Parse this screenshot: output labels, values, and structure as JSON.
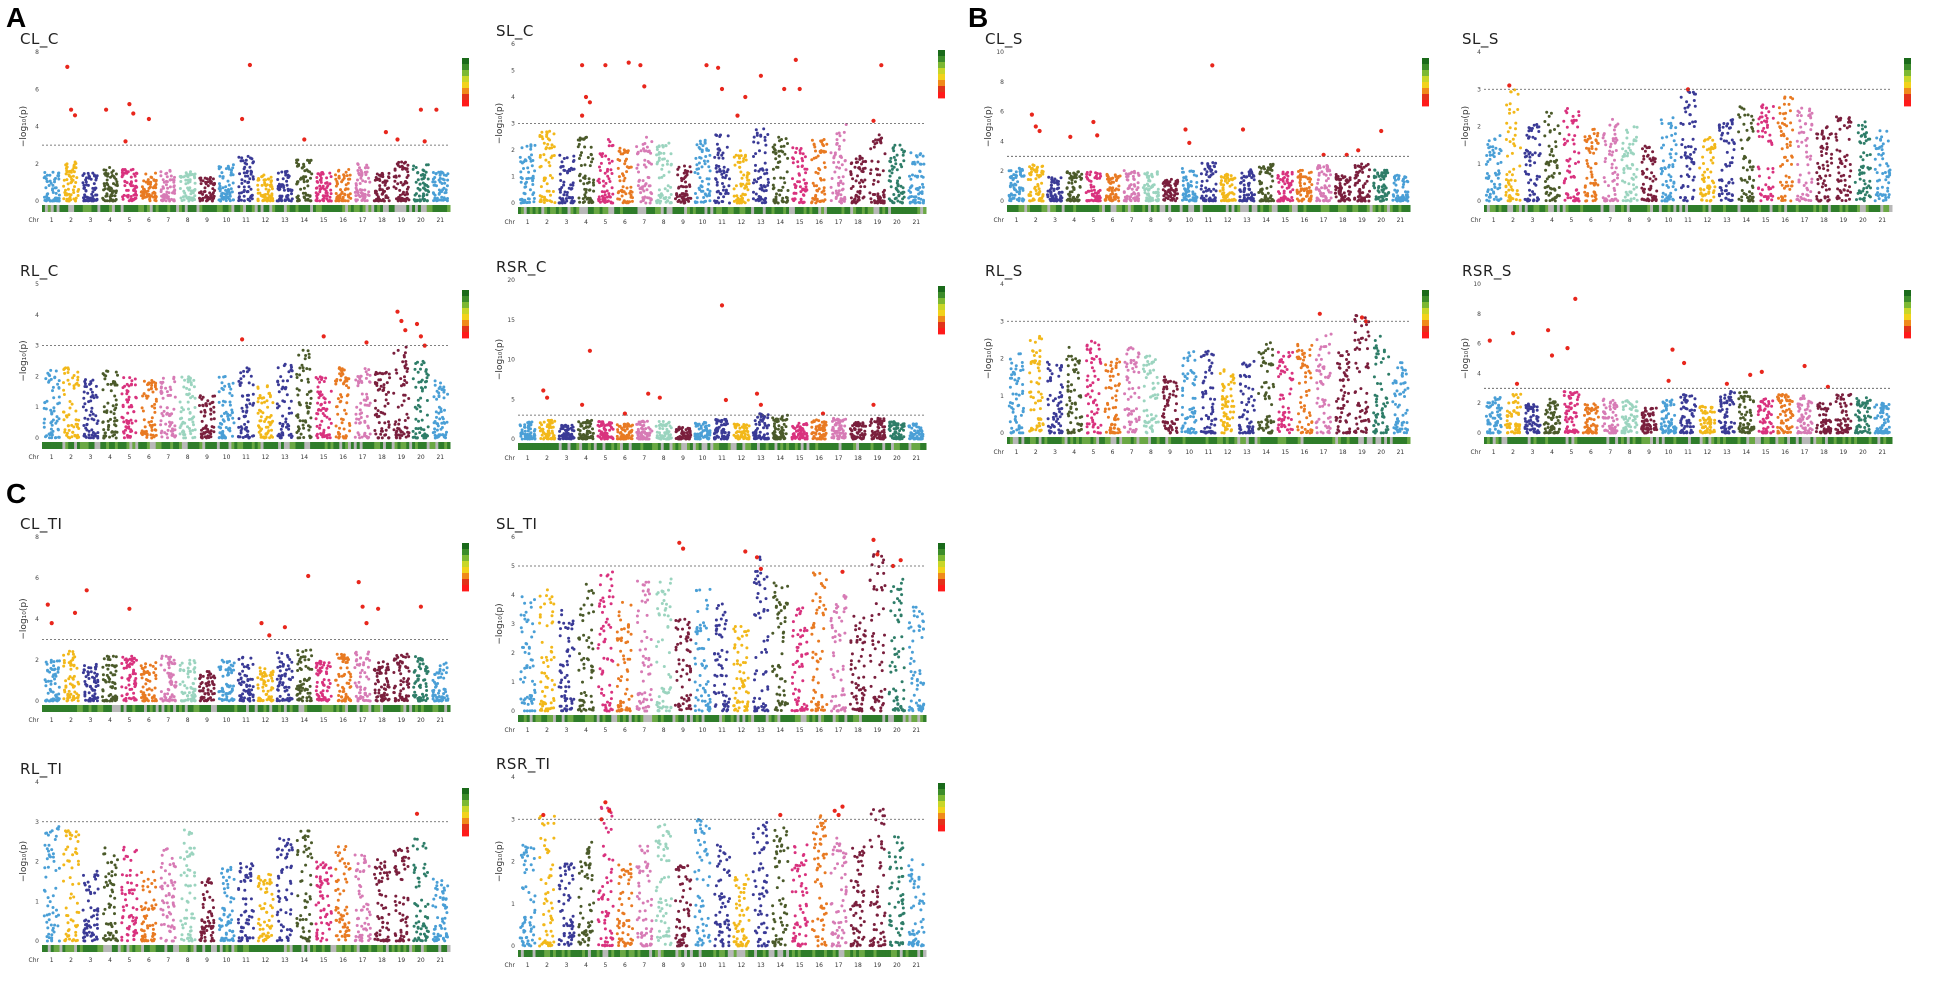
{
  "figure": {
    "panel_labels": [
      "A",
      "B",
      "C"
    ]
  },
  "common": {
    "ylabel": "−log₁₀(p)",
    "chr_prefix": "Chr",
    "chromosomes": [
      "1",
      "2",
      "3",
      "4",
      "5",
      "6",
      "7",
      "8",
      "9",
      "10",
      "11",
      "12",
      "13",
      "14",
      "15",
      "16",
      "17",
      "18",
      "19",
      "20",
      "21"
    ],
    "chrom_colors": [
      "#4a9fd6",
      "#f2b81a",
      "#3a3a96",
      "#4b5a2a",
      "#d9327e",
      "#e87a22",
      "#d77bb5",
      "#9bd4bf",
      "#7a1f3d",
      "#4a9fd6",
      "#3a3a96",
      "#f2b81a",
      "#3a3a96",
      "#4b5a2a",
      "#d9327e",
      "#e87a22",
      "#d77bb5",
      "#7a1f3d",
      "#7a1f3d",
      "#2e7d68",
      "#4a9fd6"
    ],
    "density_legend_colors": [
      "#1a6a1a",
      "#3c8c2a",
      "#7cb832",
      "#c8d628",
      "#f2d21a",
      "#f08a1a",
      "#e2331a",
      "#ff1a1a"
    ]
  },
  "chart_data": [
    {
      "id": "CL_C",
      "title": "CL_C",
      "type": "scatter",
      "subtype": "manhattan",
      "ylim": [
        0,
        8
      ],
      "yticks": [
        0,
        2,
        4,
        6,
        8
      ],
      "threshold": 3,
      "base_height": [
        1.6,
        2.1,
        1.5,
        1.8,
        1.7,
        1.5,
        1.8,
        1.6,
        1.3,
        2.0,
        2.4,
        1.5,
        1.6,
        2.2,
        1.6,
        1.7,
        2.0,
        1.5,
        2.1,
        2.0,
        1.6
      ],
      "significant": [
        [
          2,
          7.2
        ],
        [
          2,
          4.9
        ],
        [
          2,
          4.6
        ],
        [
          4,
          4.9
        ],
        [
          5,
          5.2
        ],
        [
          5,
          4.7
        ],
        [
          5,
          3.2
        ],
        [
          6,
          4.4
        ],
        [
          11,
          7.3
        ],
        [
          11,
          4.4
        ],
        [
          14,
          3.3
        ],
        [
          18,
          3.7
        ],
        [
          19,
          3.3
        ],
        [
          20,
          4.9
        ],
        [
          20,
          3.2
        ],
        [
          21,
          4.9
        ]
      ]
    },
    {
      "id": "SL_C",
      "title": "SL_C",
      "type": "scatter",
      "subtype": "manhattan",
      "ylim": [
        0,
        6
      ],
      "yticks": [
        0,
        1,
        2,
        3,
        4,
        5,
        6
      ],
      "threshold": 3,
      "base_height": [
        2.2,
        2.8,
        1.8,
        2.5,
        2.4,
        2.2,
        2.5,
        2.3,
        1.5,
        2.4,
        2.6,
        2.0,
        2.8,
        2.5,
        2.1,
        2.4,
        3.0,
        1.8,
        2.6,
        2.3,
        1.9
      ],
      "significant": [
        [
          4,
          5.2
        ],
        [
          4,
          4.0
        ],
        [
          4,
          3.8
        ],
        [
          4,
          3.3
        ],
        [
          5,
          5.2
        ],
        [
          6,
          5.3
        ],
        [
          7,
          5.2
        ],
        [
          7,
          4.4
        ],
        [
          10,
          5.2
        ],
        [
          11,
          5.1
        ],
        [
          11,
          4.3
        ],
        [
          12,
          4.0
        ],
        [
          12,
          3.3
        ],
        [
          13,
          4.8
        ],
        [
          14,
          4.3
        ],
        [
          15,
          5.4
        ],
        [
          15,
          4.3
        ],
        [
          19,
          5.2
        ],
        [
          19,
          3.1
        ]
      ]
    },
    {
      "id": "RL_C",
      "title": "RL_C",
      "type": "scatter",
      "subtype": "manhattan",
      "ylim": [
        0,
        5
      ],
      "yticks": [
        0,
        1,
        2,
        3,
        4,
        5
      ],
      "threshold": 3,
      "base_height": [
        2.2,
        2.3,
        1.9,
        2.2,
        2.1,
        1.9,
        2.0,
        2.0,
        1.4,
        2.0,
        2.3,
        1.7,
        2.4,
        2.9,
        2.0,
        2.3,
        2.4,
        2.2,
        3.0,
        2.5,
        1.9
      ],
      "significant": [
        [
          11,
          3.2
        ],
        [
          15,
          3.3
        ],
        [
          17,
          3.1
        ],
        [
          19,
          4.1
        ],
        [
          19,
          3.8
        ],
        [
          19,
          3.5
        ],
        [
          20,
          3.7
        ],
        [
          20,
          3.3
        ],
        [
          20,
          3.0
        ]
      ]
    },
    {
      "id": "RSR_C",
      "title": "RSR_C",
      "type": "scatter",
      "subtype": "manhattan",
      "ylim": [
        0,
        20
      ],
      "yticks": [
        0,
        5,
        10,
        15,
        20
      ],
      "threshold": 3,
      "base_height": [
        2.2,
        2.4,
        1.8,
        2.4,
        2.2,
        2.0,
        2.3,
        2.2,
        1.5,
        2.1,
        2.5,
        1.9,
        3.2,
        3.0,
        2.0,
        2.4,
        2.6,
        2.1,
        2.6,
        2.2,
        1.9
      ],
      "significant": [
        [
          2,
          6.1
        ],
        [
          2,
          5.2
        ],
        [
          4,
          11.1
        ],
        [
          4,
          4.3
        ],
        [
          6,
          3.2
        ],
        [
          7,
          5.7
        ],
        [
          8,
          5.2
        ],
        [
          11,
          16.8
        ],
        [
          11,
          4.9
        ],
        [
          13,
          5.7
        ],
        [
          13,
          4.3
        ],
        [
          16,
          3.2
        ],
        [
          19,
          4.3
        ]
      ]
    },
    {
      "id": "CL_S",
      "title": "CL_S",
      "type": "scatter",
      "subtype": "manhattan",
      "ylim": [
        0,
        10
      ],
      "yticks": [
        0,
        2,
        4,
        6,
        8,
        10
      ],
      "threshold": 3,
      "base_height": [
        2.2,
        2.5,
        1.7,
        2.0,
        2.0,
        1.8,
        2.1,
        2.0,
        1.5,
        2.2,
        2.6,
        1.8,
        2.1,
        2.5,
        2.0,
        2.2,
        2.4,
        1.8,
        2.5,
        2.2,
        1.8
      ],
      "significant": [
        [
          2,
          5.8
        ],
        [
          2,
          5.0
        ],
        [
          2,
          4.7
        ],
        [
          4,
          4.3
        ],
        [
          5,
          5.3
        ],
        [
          5,
          4.4
        ],
        [
          10,
          4.8
        ],
        [
          10,
          3.9
        ],
        [
          11,
          9.1
        ],
        [
          13,
          4.8
        ],
        [
          17,
          3.1
        ],
        [
          18,
          3.1
        ],
        [
          19,
          3.4
        ],
        [
          20,
          4.7
        ]
      ]
    },
    {
      "id": "SL_S",
      "title": "SL_S",
      "type": "scatter",
      "subtype": "manhattan",
      "ylim": [
        0,
        4
      ],
      "yticks": [
        0,
        1,
        2,
        3,
        4
      ],
      "threshold": 3,
      "base_height": [
        1.8,
        3.1,
        2.2,
        2.4,
        2.5,
        2.0,
        2.2,
        2.0,
        1.5,
        2.3,
        3.0,
        1.8,
        2.2,
        2.6,
        2.6,
        2.8,
        2.5,
        2.0,
        2.3,
        2.2,
        1.9
      ],
      "significant": [
        [
          2,
          3.1
        ],
        [
          11,
          3.0
        ]
      ]
    },
    {
      "id": "RL_S",
      "title": "RL_S",
      "type": "scatter",
      "subtype": "manhattan",
      "ylim": [
        0,
        4
      ],
      "yticks": [
        0,
        1,
        2,
        3,
        4
      ],
      "threshold": 3,
      "base_height": [
        2.2,
        2.6,
        1.9,
        2.3,
        2.5,
        2.0,
        2.3,
        2.1,
        1.6,
        2.2,
        2.4,
        1.7,
        2.0,
        2.5,
        2.2,
        2.4,
        2.9,
        2.2,
        3.2,
        2.6,
        1.9
      ],
      "significant": [
        [
          17,
          3.2
        ],
        [
          19,
          3.1
        ],
        [
          19,
          3.0
        ]
      ]
    },
    {
      "id": "RSR_S",
      "title": "RSR_S",
      "type": "scatter",
      "subtype": "manhattan",
      "ylim": [
        0,
        10
      ],
      "yticks": [
        0,
        2,
        4,
        6,
        8,
        10
      ],
      "threshold": 3,
      "base_height": [
        2.4,
        2.6,
        2.0,
        2.3,
        2.8,
        2.0,
        2.3,
        2.2,
        1.7,
        2.3,
        2.6,
        1.9,
        2.8,
        2.8,
        2.3,
        2.6,
        2.6,
        2.2,
        2.6,
        2.4,
        2.0
      ],
      "significant": [
        [
          1,
          6.2
        ],
        [
          2,
          6.7
        ],
        [
          2,
          3.3
        ],
        [
          4,
          6.9
        ],
        [
          4,
          5.2
        ],
        [
          5,
          9.0
        ],
        [
          5,
          5.7
        ],
        [
          10,
          3.5
        ],
        [
          10,
          5.6
        ],
        [
          11,
          4.7
        ],
        [
          13,
          3.3
        ],
        [
          14,
          3.9
        ],
        [
          15,
          4.1
        ],
        [
          17,
          4.5
        ],
        [
          18,
          3.1
        ]
      ]
    },
    {
      "id": "CL_TI",
      "title": "CL_TI",
      "type": "scatter",
      "subtype": "manhattan",
      "ylim": [
        0,
        8
      ],
      "yticks": [
        0,
        2,
        4,
        6,
        8
      ],
      "threshold": 3,
      "base_height": [
        2.0,
        2.5,
        1.8,
        2.2,
        2.2,
        1.9,
        2.2,
        2.0,
        1.5,
        2.0,
        2.2,
        1.7,
        2.4,
        2.5,
        2.0,
        2.3,
        2.4,
        2.0,
        2.3,
        2.2,
        1.9
      ],
      "significant": [
        [
          1,
          4.7
        ],
        [
          1,
          3.8
        ],
        [
          2,
          4.3
        ],
        [
          3,
          5.4
        ],
        [
          5,
          4.5
        ],
        [
          12,
          3.2
        ],
        [
          12,
          3.8
        ],
        [
          13,
          3.6
        ],
        [
          14,
          6.1
        ],
        [
          17,
          5.8
        ],
        [
          17,
          4.6
        ],
        [
          17,
          3.8
        ],
        [
          18,
          4.5
        ],
        [
          20,
          4.6
        ]
      ]
    },
    {
      "id": "SL_TI",
      "title": "SL_TI",
      "type": "scatter",
      "subtype": "manhattan",
      "ylim": [
        0,
        6
      ],
      "yticks": [
        0,
        1,
        2,
        3,
        4,
        5,
        6
      ],
      "threshold": 5,
      "base_height": [
        4.0,
        4.2,
        3.6,
        4.4,
        4.8,
        3.8,
        4.5,
        4.6,
        3.2,
        4.2,
        3.7,
        3.0,
        5.4,
        4.5,
        3.6,
        4.8,
        4.0,
        3.3,
        5.5,
        4.8,
        3.6
      ],
      "significant": [
        [
          9,
          5.8
        ],
        [
          9,
          5.6
        ],
        [
          12,
          5.5
        ],
        [
          13,
          5.3
        ],
        [
          13,
          4.9
        ],
        [
          17,
          4.8
        ],
        [
          19,
          5.9
        ],
        [
          19,
          5.4
        ],
        [
          20,
          5.2
        ],
        [
          20,
          5.0
        ]
      ]
    },
    {
      "id": "RL_TI",
      "title": "RL_TI",
      "type": "scatter",
      "subtype": "manhattan",
      "ylim": [
        0,
        4
      ],
      "yticks": [
        0,
        1,
        2,
        3,
        4
      ],
      "threshold": 3,
      "base_height": [
        2.9,
        2.8,
        1.8,
        2.4,
        2.5,
        1.9,
        2.4,
        2.9,
        1.6,
        1.9,
        2.1,
        1.7,
        2.6,
        2.8,
        2.0,
        2.4,
        2.2,
        2.1,
        2.4,
        2.6,
        1.6
      ],
      "significant": [
        [
          20,
          3.2
        ]
      ]
    },
    {
      "id": "RSR_TI",
      "title": "RSR_TI",
      "type": "scatter",
      "subtype": "manhattan",
      "ylim": [
        0,
        4
      ],
      "yticks": [
        0,
        1,
        2,
        3,
        4
      ],
      "threshold": 3,
      "base_height": [
        2.4,
        3.1,
        2.0,
        2.5,
        3.4,
        2.0,
        2.4,
        2.9,
        1.9,
        3.0,
        2.4,
        1.7,
        3.0,
        2.8,
        2.4,
        3.1,
        2.6,
        2.4,
        3.3,
        2.6,
        2.1
      ],
      "significant": [
        [
          2,
          3.1
        ],
        [
          5,
          3.4
        ],
        [
          5,
          3.2
        ],
        [
          5,
          3.0
        ],
        [
          14,
          3.1
        ],
        [
          17,
          3.3
        ],
        [
          17,
          3.2
        ],
        [
          17,
          3.1
        ]
      ]
    }
  ]
}
